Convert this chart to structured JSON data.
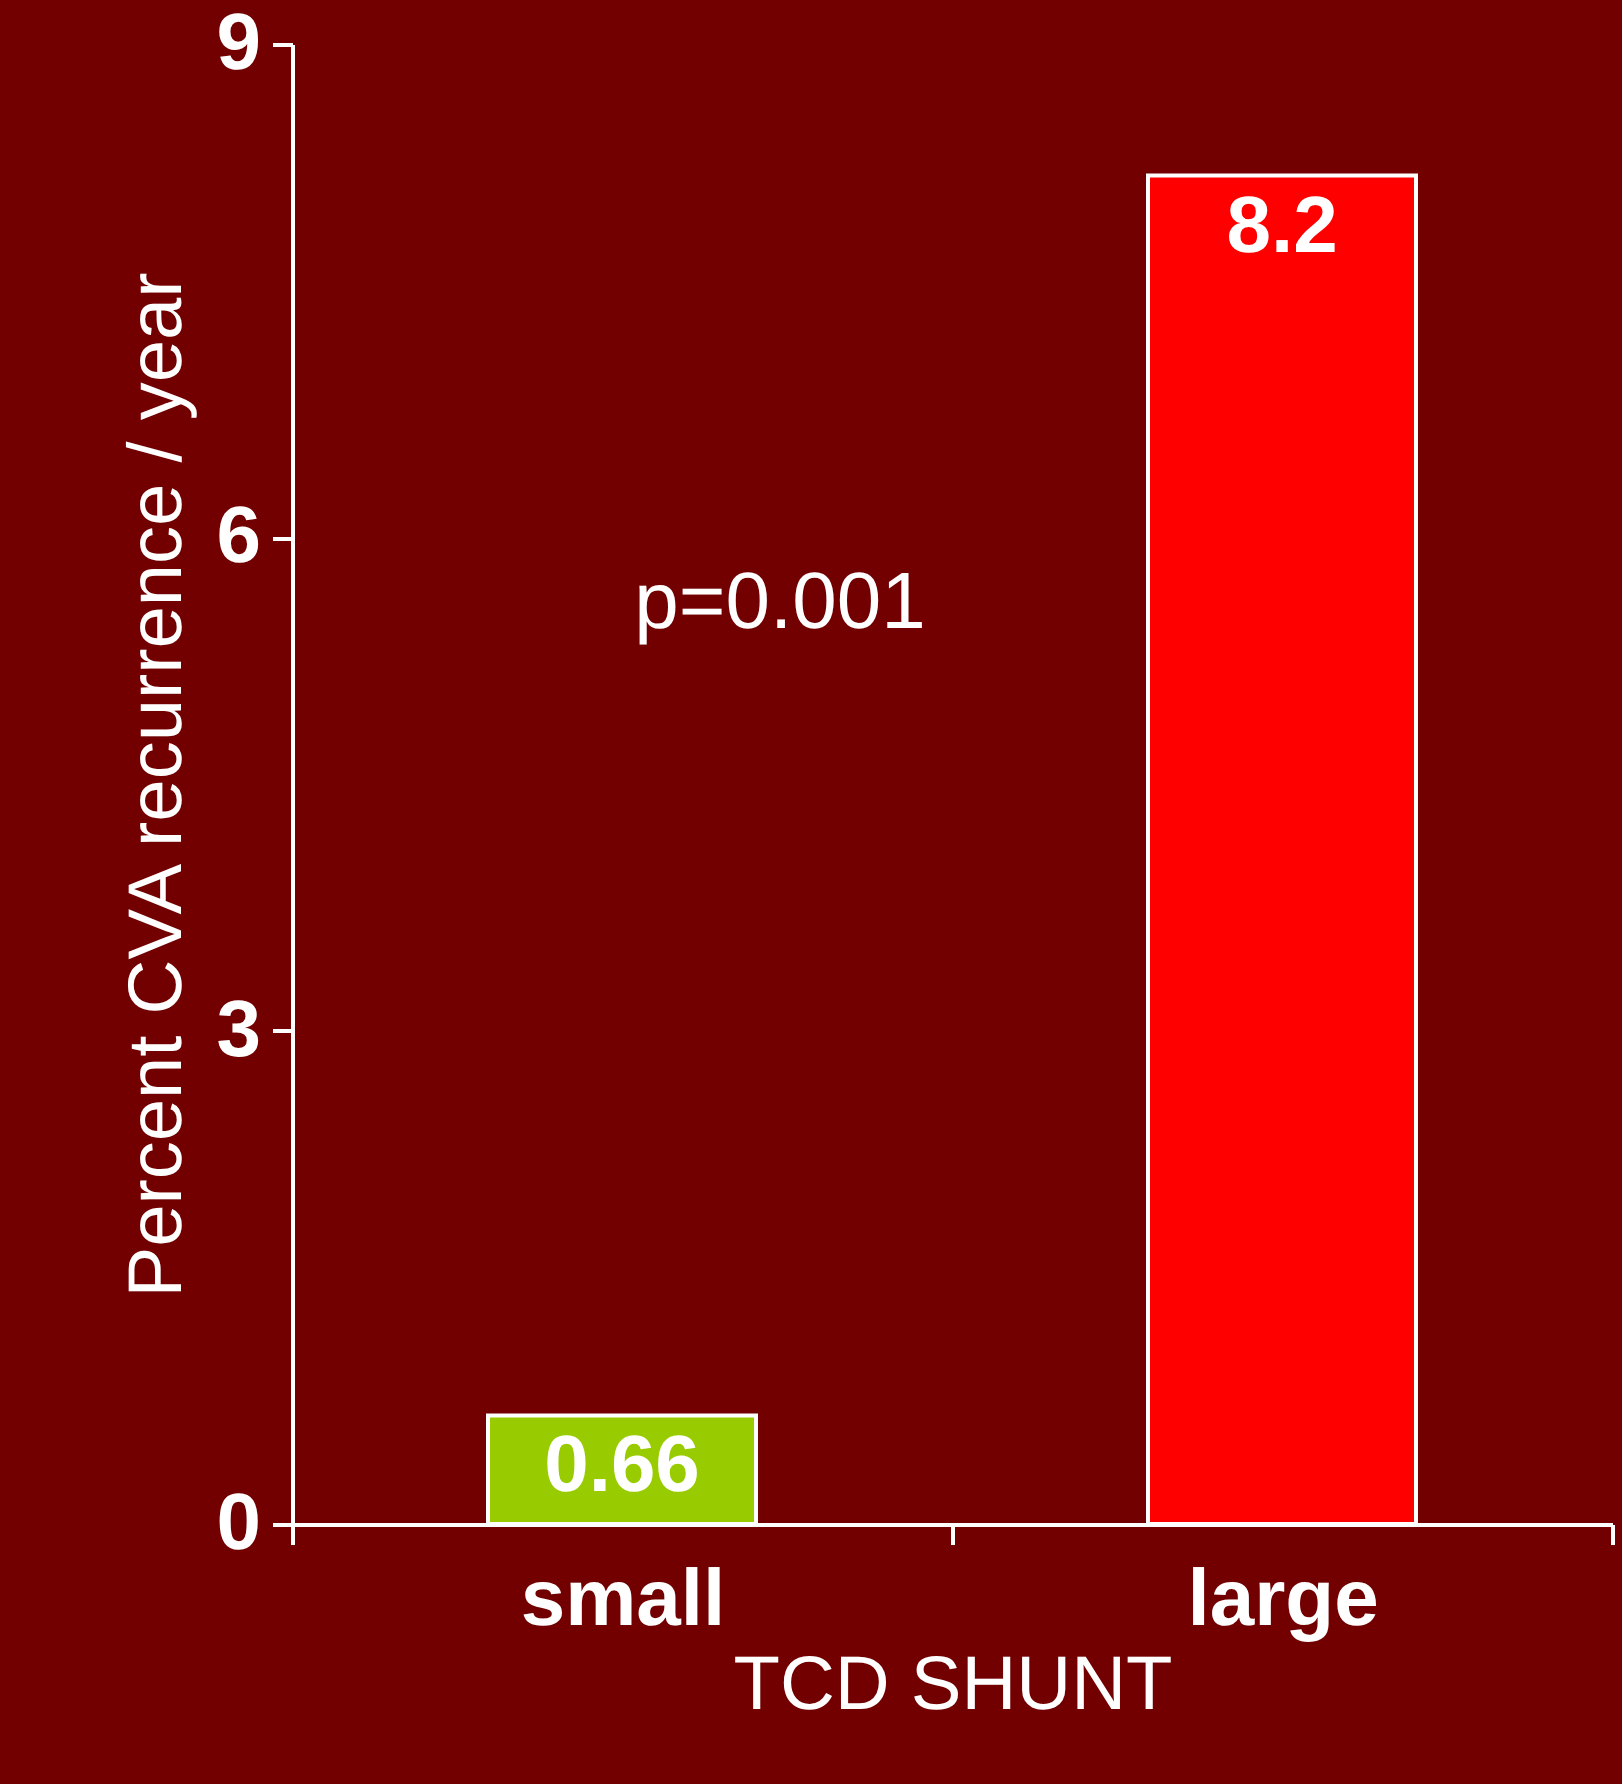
{
  "chart_data": {
    "type": "bar",
    "xlabel": "TCD SHUNT",
    "ylabel": "Percent CVA recurrence / year",
    "categories": [
      "small",
      "large"
    ],
    "values": [
      0.66,
      8.2
    ],
    "colors": [
      "#99cc00",
      "#ff0000"
    ],
    "ylim": [
      0,
      9
    ],
    "yticks": [
      0,
      3,
      6,
      9
    ],
    "data_labels": true,
    "annotations": [
      "p=0.001"
    ],
    "grid": false
  }
}
